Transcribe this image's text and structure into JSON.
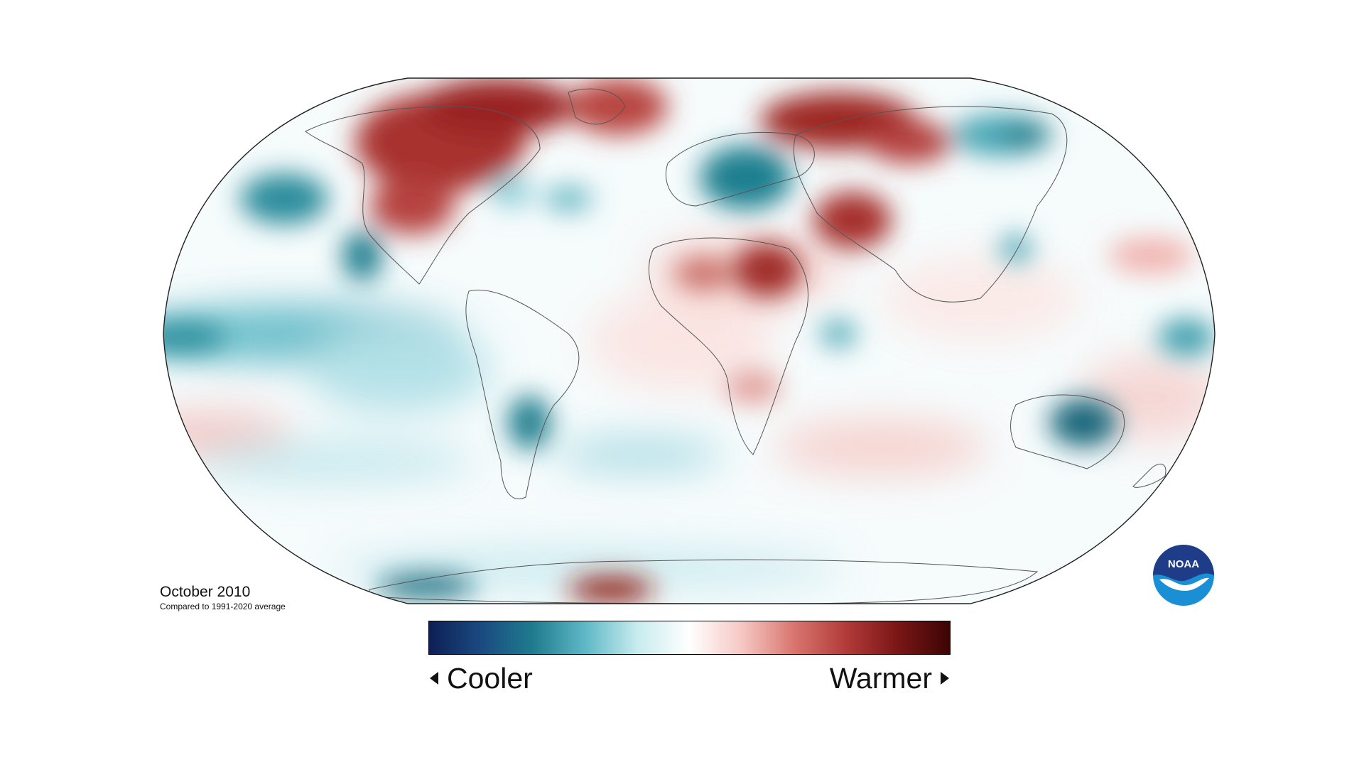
{
  "title": "October 2010",
  "subtitle": "Compared to 1991-2020 average",
  "legend": {
    "cooler_label": "Cooler",
    "warmer_label": "Warmer",
    "cooler_arrow_icon": "triangle-left-icon",
    "warmer_arrow_icon": "triangle-right-icon",
    "gradient_colors": [
      "#0d1f55",
      "#1a4a80",
      "#1f7c8e",
      "#5fb8c6",
      "#c8ecef",
      "#ffffff",
      "#f6c8c4",
      "#d9766f",
      "#b23b39",
      "#7a1616",
      "#3c0404"
    ]
  },
  "logo": {
    "text": "NOAA",
    "icon": "noaa-logo-icon",
    "color_dark": "#1f3c88",
    "color_light": "#1a8fd6"
  },
  "map": {
    "projection": "robinson",
    "ocean_base_color": "#f4fbfc",
    "coastline_color": "#555555",
    "cool_color": "#1f7c8e",
    "warm_color": "#a8302d"
  }
}
